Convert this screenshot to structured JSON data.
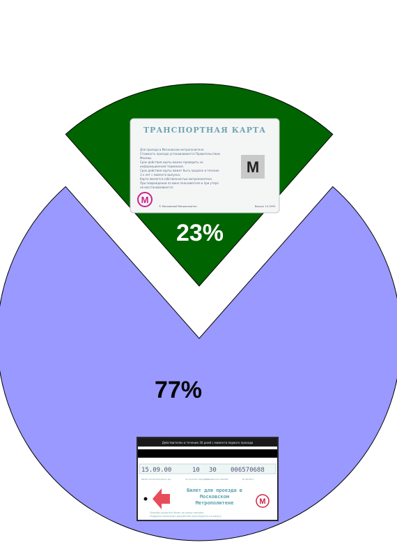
{
  "chart_data": {
    "type": "pie",
    "title": "",
    "slices": [
      {
        "label": "23%",
        "value": 23,
        "color": "#006400",
        "label_color": "#ffffff",
        "exploded": true
      },
      {
        "label": "77%",
        "value": 77,
        "color": "#9999ff",
        "label_color": "#000000",
        "exploded": false
      }
    ],
    "legend": "none"
  },
  "cards": {
    "transport_card": {
      "title": "ТРАНСПОРТНАЯ КАРТА",
      "text_lines": [
        "Для проезда в Московском метрополитене.",
        "Стоимость проезда устанавливается Правительством",
        "Москвы.",
        "Срок действия карты можно проверить на",
        "информационном терминале.",
        "Срок действия карты может быть продлен в течение",
        "1-х лет с момента выпуска.",
        "Карта является собственностью метрополитена.",
        "При повреждении по вине пользователя и при утере",
        "не восстанавливается."
      ],
      "logo": "М",
      "footer_left": "© Московский Метрополитен",
      "footer_right": "Выпуск 10.1999"
    },
    "ticket": {
      "header": "Действителен в течение 30 дней с момента первого прохода",
      "date": "15.09.00",
      "trips": "10",
      "price": "30",
      "number": "006570688",
      "col1_caption": "БИЛЕТ ИСПОЛЬЗОВАТЬ ДО",
      "col2_caption": "НА КОЛ-ВО ПОЕЗДОК",
      "col3_caption": "СТОИМОСТЬ РУБЛЕЙ",
      "col4_caption": "№ БИЛЕТА",
      "main_text": [
        "Билет для проезда в",
        "Московском",
        "Метрополитене"
      ],
      "logo": "М",
      "footer_lines": [
        "Просьба сохранять билет до конца поездки.",
        "Подделка проездных документов преследуется по закону."
      ]
    }
  }
}
